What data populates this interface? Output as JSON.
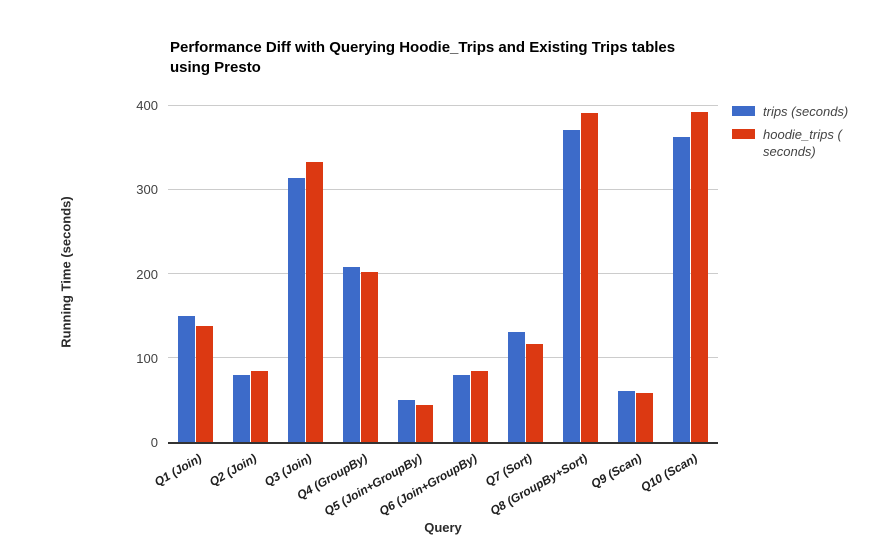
{
  "chart_data": {
    "type": "bar",
    "title": "Performance Diff with Querying Hoodie_Trips and Existing Trips tables using Presto",
    "title_lines": [
      "Performance Diff with Querying Hoodie_Trips and Existing Trips tables",
      "using Presto"
    ],
    "xlabel": "Query",
    "ylabel": "Running Time (seconds)",
    "ylim": [
      0,
      400
    ],
    "yticks": [
      0,
      100,
      200,
      300,
      400
    ],
    "grid": "horizontal",
    "legend_position": "top-right",
    "categories": [
      "Q1 (Join)",
      "Q2 (Join)",
      "Q3 (Join)",
      "Q4 (GroupBy)",
      "Q5 (Join+GroupBy)",
      "Q6 (Join+GroupBy)",
      "Q7 (Sort)",
      "Q8 (GroupBy+Sort)",
      "Q9 (Scan)",
      "Q10 (Scan)"
    ],
    "series": [
      {
        "name": "trips (seconds)",
        "color": "#3D6BC9",
        "values": [
          150,
          80,
          313,
          208,
          50,
          80,
          130,
          370,
          60,
          362
        ]
      },
      {
        "name": "hoodie_trips (seconds)",
        "color": "#DC3912",
        "values": [
          138,
          84,
          332,
          202,
          44,
          84,
          116,
          390,
          58,
          392
        ]
      }
    ],
    "legend": [
      {
        "lines": [
          "trips (seconds)"
        ]
      },
      {
        "lines": [
          "hoodie_trips (",
          "seconds)"
        ]
      }
    ]
  },
  "colors": {
    "series_blue": "#3D6BC9",
    "series_red": "#DC3912",
    "gridline": "#cccccc",
    "axis_baseline": "#333333",
    "tick_label": "#424242",
    "title_text": "#000000"
  }
}
